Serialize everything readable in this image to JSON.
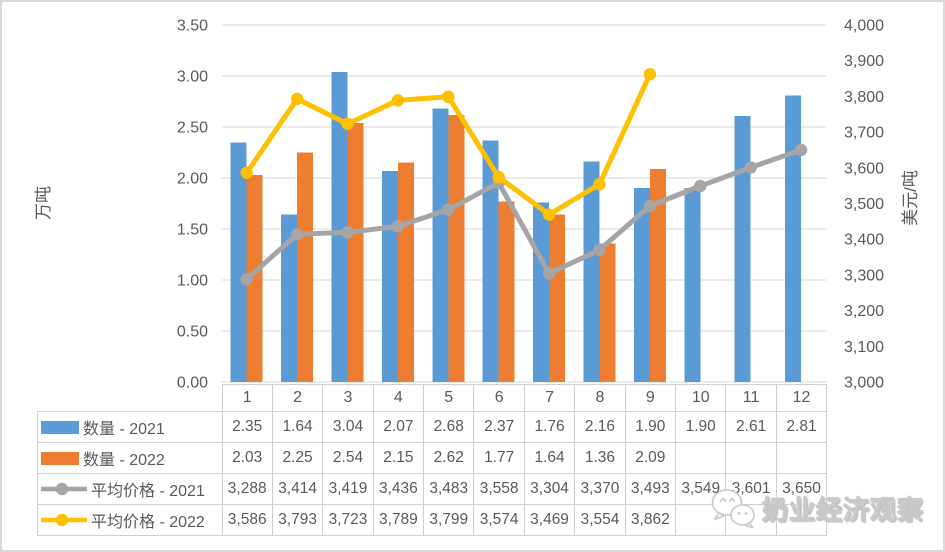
{
  "chart_data": {
    "type": "combo",
    "categories": [
      "1",
      "2",
      "3",
      "4",
      "5",
      "6",
      "7",
      "8",
      "9",
      "10",
      "11",
      "12"
    ],
    "series": [
      {
        "name": "数量 - 2021",
        "type": "bar",
        "color": "#5B9BD5",
        "axis": "left",
        "format": "2dp",
        "values": [
          2.35,
          1.64,
          3.04,
          2.07,
          2.68,
          2.37,
          1.76,
          2.16,
          1.9,
          1.9,
          2.61,
          2.81
        ]
      },
      {
        "name": "数量 - 2022",
        "type": "bar",
        "color": "#ED7D31",
        "axis": "left",
        "format": "2dp",
        "values": [
          2.03,
          2.25,
          2.54,
          2.15,
          2.62,
          1.77,
          1.64,
          1.36,
          2.09,
          null,
          null,
          null
        ]
      },
      {
        "name": "平均价格 - 2021",
        "type": "line",
        "color": "#A5A5A5",
        "axis": "right",
        "format": "thousands",
        "values": [
          3288,
          3414,
          3419,
          3436,
          3483,
          3558,
          3304,
          3370,
          3493,
          3549,
          3601,
          3650
        ]
      },
      {
        "name": "平均价格 - 2022",
        "type": "line",
        "color": "#FFC000",
        "axis": "right",
        "format": "thousands",
        "values": [
          3586,
          3793,
          3723,
          3789,
          3799,
          3574,
          3469,
          3554,
          3862,
          null,
          null,
          null
        ]
      }
    ],
    "left_axis": {
      "title": "万吨",
      "min": 0,
      "max": 3.5,
      "step": 0.5,
      "tick_labels": [
        "3.50",
        "3.00",
        "2.50",
        "2.00",
        "1.50",
        "1.00",
        "0.50",
        "0.00"
      ]
    },
    "right_axis": {
      "title": "美元/吨",
      "min": 3000,
      "max": 4000,
      "step": 100,
      "tick_labels": [
        "4,000",
        "3,900",
        "3,800",
        "3,700",
        "3,600",
        "3,500",
        "3,400",
        "3,300",
        "3,200",
        "3,100",
        "3,000"
      ]
    },
    "grid": true,
    "legend_position": "table-left"
  },
  "watermark": {
    "text": "奶业经济观察",
    "icon": "wechat-logo-icon"
  },
  "colors": {
    "text": "#595959",
    "gridline": "#D9D9D9",
    "table_border": "#D0CECE",
    "background": "#FFFFFF",
    "bar_2021": "#5B9BD5",
    "bar_2022": "#ED7D31",
    "line_2021": "#A5A5A5",
    "line_2022": "#FFC000"
  }
}
